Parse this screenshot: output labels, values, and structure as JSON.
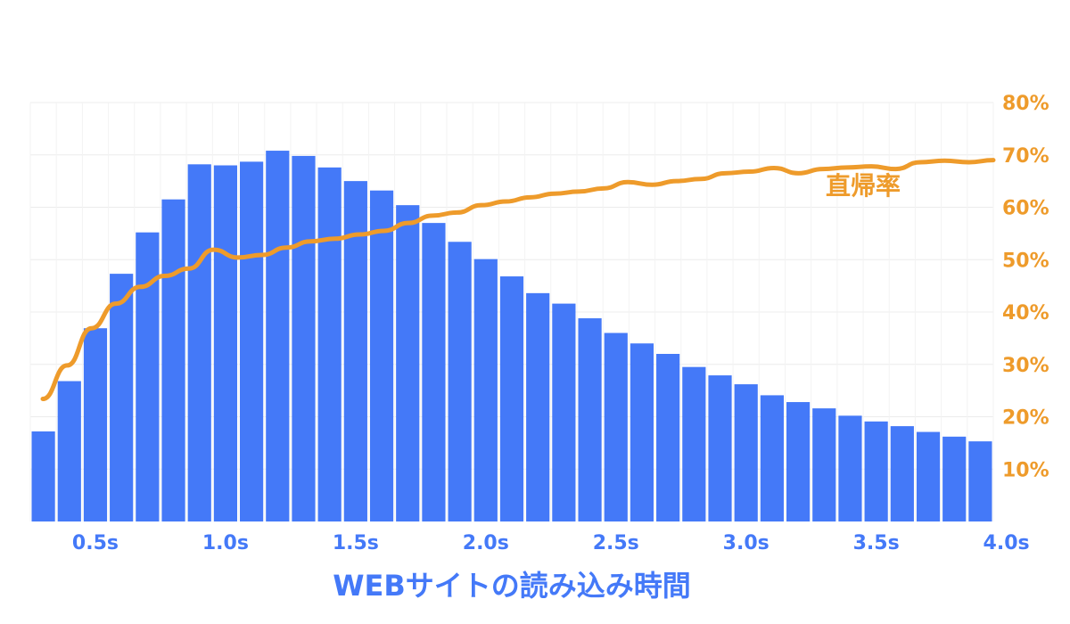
{
  "chart_data": {
    "type": "bar",
    "title": "",
    "xlabel": "WEBサイトの読み込み時間",
    "ylabel": "",
    "x_tick_labels": [
      "0.5s",
      "1.0s",
      "1.5s",
      "2.0s",
      "2.5s",
      "3.0s",
      "3.5s",
      "4.0s"
    ],
    "x_tick_bar_index": [
      2,
      7,
      12,
      17,
      22,
      27,
      32,
      37
    ],
    "y2_tick_labels": [
      "10%",
      "20%",
      "30%",
      "40%",
      "50%",
      "60%",
      "70%",
      "80%"
    ],
    "y2_ticks": [
      10,
      20,
      30,
      40,
      50,
      60,
      70,
      80
    ],
    "y2lim": [
      0,
      80
    ],
    "bar_ylim": [
      0,
      80
    ],
    "grid": true,
    "bar_series": {
      "color": "#4479f8",
      "values": [
        17.2,
        26.8,
        36.9,
        47.3,
        55.2,
        61.5,
        68.2,
        68.0,
        68.7,
        70.8,
        69.8,
        67.6,
        65.0,
        63.2,
        60.4,
        57.0,
        53.4,
        50.1,
        46.8,
        43.6,
        41.6,
        38.8,
        36.0,
        34.0,
        32.0,
        29.5,
        27.9,
        26.2,
        24.1,
        22.8,
        21.6,
        20.2,
        19.1,
        18.2,
        17.1,
        16.2,
        15.3
      ]
    },
    "line_series": {
      "name": "直帰率",
      "color": "#ee9b2b",
      "values": [
        23.4,
        29.8,
        36.9,
        41.6,
        44.8,
        46.9,
        48.3,
        51.9,
        50.4,
        50.9,
        52.3,
        53.5,
        54.0,
        54.8,
        55.5,
        57.0,
        58.4,
        59.0,
        60.4,
        61.1,
        61.9,
        62.6,
        63.0,
        63.6,
        64.8,
        64.3,
        65.0,
        65.4,
        66.5,
        66.8,
        67.5,
        66.5,
        67.3,
        67.6,
        67.8,
        67.3,
        68.6,
        68.9,
        68.6,
        69.0
      ]
    }
  }
}
